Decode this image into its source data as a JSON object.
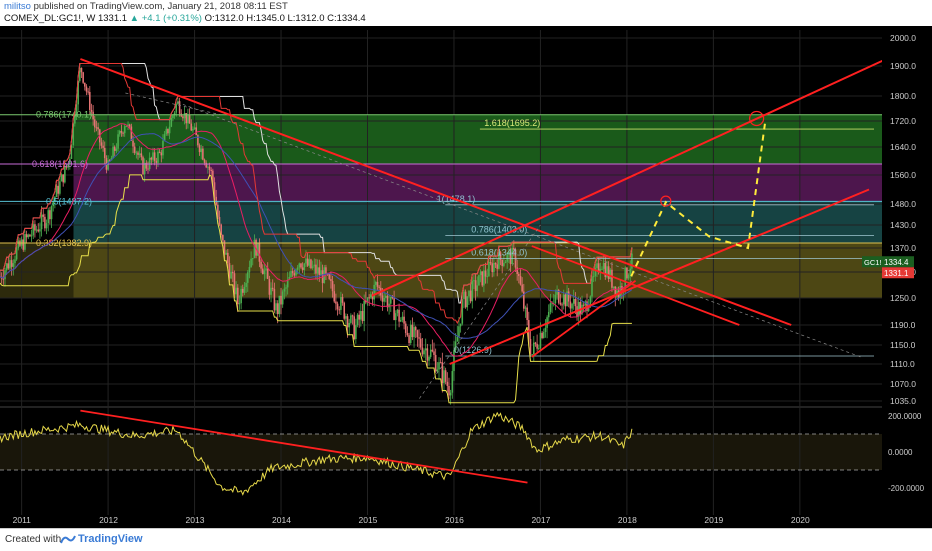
{
  "header": {
    "user": "militso",
    "published": "published on TradingView.com, January 21, 2018 08:11 EST",
    "symbol": "COMEX_DL:GC1!, W",
    "last": "1331.1",
    "change": "+4.1 (+0.31%)",
    "ohlc": "O:1312.0 H:1345.0 L:1312.0 C:1334.4"
  },
  "footer": {
    "created_with": "Created with",
    "brand": "TradingView"
  },
  "colors": {
    "bg": "#000000",
    "candle_up": "#4caf50",
    "candle_down": "#e57373",
    "trend": "#ff2020",
    "projection": "#ffeb3b",
    "osc": "#e6d84a"
  },
  "chart_data": [
    {
      "type": "candlestick",
      "symbol": "COMEX_DL:GC1!",
      "timeframe": "W",
      "x_ticks": [
        "2011",
        "2012",
        "2013",
        "2014",
        "2015",
        "2016",
        "2017",
        "2018",
        "2019",
        "2020"
      ],
      "y_ticks": [
        "2000.0",
        "1900.0",
        "1800.0",
        "1720.0",
        "1640.0",
        "1560.0",
        "1480.0",
        "1430.0",
        "1370.0",
        "1310.0",
        "1250.0",
        "1190.0",
        "1150.0",
        "1110.0",
        "1070.0",
        "1035.0"
      ],
      "ylim": [
        1020,
        2010
      ],
      "approx_weekly_close_path": [
        {
          "t": 2010.75,
          "v": 1300
        },
        {
          "t": 2011.0,
          "v": 1380
        },
        {
          "t": 2011.3,
          "v": 1450
        },
        {
          "t": 2011.55,
          "v": 1600
        },
        {
          "t": 2011.68,
          "v": 1900
        },
        {
          "t": 2011.85,
          "v": 1700
        },
        {
          "t": 2012.0,
          "v": 1580
        },
        {
          "t": 2012.2,
          "v": 1720
        },
        {
          "t": 2012.4,
          "v": 1580
        },
        {
          "t": 2012.6,
          "v": 1620
        },
        {
          "t": 2012.8,
          "v": 1780
        },
        {
          "t": 2013.0,
          "v": 1680
        },
        {
          "t": 2013.2,
          "v": 1560
        },
        {
          "t": 2013.3,
          "v": 1400
        },
        {
          "t": 2013.5,
          "v": 1240
        },
        {
          "t": 2013.7,
          "v": 1380
        },
        {
          "t": 2013.95,
          "v": 1220
        },
        {
          "t": 2014.2,
          "v": 1340
        },
        {
          "t": 2014.5,
          "v": 1300
        },
        {
          "t": 2014.85,
          "v": 1180
        },
        {
          "t": 2015.1,
          "v": 1280
        },
        {
          "t": 2015.5,
          "v": 1170
        },
        {
          "t": 2015.75,
          "v": 1130
        },
        {
          "t": 2015.95,
          "v": 1060
        },
        {
          "t": 2016.1,
          "v": 1240
        },
        {
          "t": 2016.5,
          "v": 1340
        },
        {
          "t": 2016.7,
          "v": 1350
        },
        {
          "t": 2016.9,
          "v": 1130
        },
        {
          "t": 2017.2,
          "v": 1260
        },
        {
          "t": 2017.5,
          "v": 1220
        },
        {
          "t": 2017.7,
          "v": 1340
        },
        {
          "t": 2017.9,
          "v": 1260
        },
        {
          "t": 2018.05,
          "v": 1334
        }
      ],
      "fib_levels": [
        {
          "label": "0.786(1740.1)",
          "value": 1740.1
        },
        {
          "label": "0.618(1591.6)",
          "value": 1591.6
        },
        {
          "label": "0.5(1487.2)",
          "value": 1487.2
        },
        {
          "label": "0.382(1382.9)",
          "value": 1382.9
        }
      ],
      "fib_ext_levels": [
        {
          "label": "1.618(1695.2)",
          "value": 1695.2
        },
        {
          "label": "1(1478.1)",
          "value": 1478.1
        },
        {
          "label": "0.786(1403.0)",
          "value": 1403.0
        },
        {
          "label": "0.618(1344.0)",
          "value": 1344.0
        },
        {
          "label": "0(1126.9)",
          "value": 1126.9
        }
      ],
      "price_labels": [
        {
          "text": "GC1!",
          "value": "1334.4"
        },
        {
          "text": "",
          "value": "1331.1"
        }
      ]
    },
    {
      "type": "line",
      "name": "oscillator",
      "y_ticks": [
        "200.0000",
        "0.0000",
        "-200.0000"
      ],
      "ylim": [
        -260,
        260
      ]
    }
  ]
}
